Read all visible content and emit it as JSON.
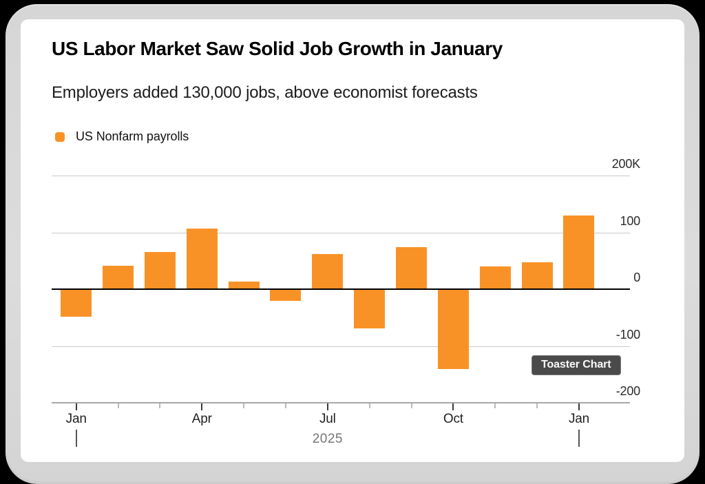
{
  "header": {
    "title": "US Labor Market Saw Solid Job Growth in January",
    "subtitle": "Employers added 130,000 jobs, above economist forecasts"
  },
  "legend": {
    "label": "US Nonfarm payrolls",
    "color": "#F99226"
  },
  "tooltip": {
    "label": "Toaster Chart"
  },
  "colors": {
    "bar": "#F99226",
    "gridline": "#c9c9c9",
    "zero_line": "#000000",
    "axis_line": "#a6a6a6",
    "tooltip_bg": "#4a4a4a",
    "bezel": "#d9d9d9",
    "card": "#ffffff"
  },
  "chart_data": {
    "type": "bar",
    "title": "US Labor Market Saw Solid Job Growth in January",
    "subtitle": "Employers added 130,000 jobs, above economist forecasts",
    "series_name": "US Nonfarm payrolls",
    "unit": "thousands of jobs (K)",
    "x": [
      "Jan 2025",
      "Feb 2025",
      "Mar 2025",
      "Apr 2025",
      "May 2025",
      "Jun 2025",
      "Jul 2025",
      "Aug 2025",
      "Sep 2025",
      "Oct 2025",
      "Nov 2025",
      "Dec 2025",
      "Jan 2026"
    ],
    "values": [
      -49,
      41,
      66,
      107,
      13,
      -20,
      62,
      -69,
      74,
      -140,
      40,
      47,
      130
    ],
    "ylim": [
      -200,
      200
    ],
    "y_ticks": [
      {
        "label": "200K",
        "value": 200
      },
      {
        "label": "100",
        "value": 100
      },
      {
        "label": "0",
        "value": 0
      },
      {
        "label": "-100",
        "value": -100
      },
      {
        "label": "-200",
        "value": -200
      }
    ],
    "x_tick_labels": [
      {
        "index": 0,
        "label": "Jan"
      },
      {
        "index": 3,
        "label": "Apr"
      },
      {
        "index": 6,
        "label": "Jul"
      },
      {
        "index": 9,
        "label": "Oct"
      },
      {
        "index": 12,
        "label": "Jan"
      }
    ],
    "year_divider_indices": [
      0,
      12
    ],
    "year_label": "2025",
    "grid": true,
    "legend_position": "top-left",
    "y_axis_side": "right",
    "bar_color": "#F99226"
  }
}
